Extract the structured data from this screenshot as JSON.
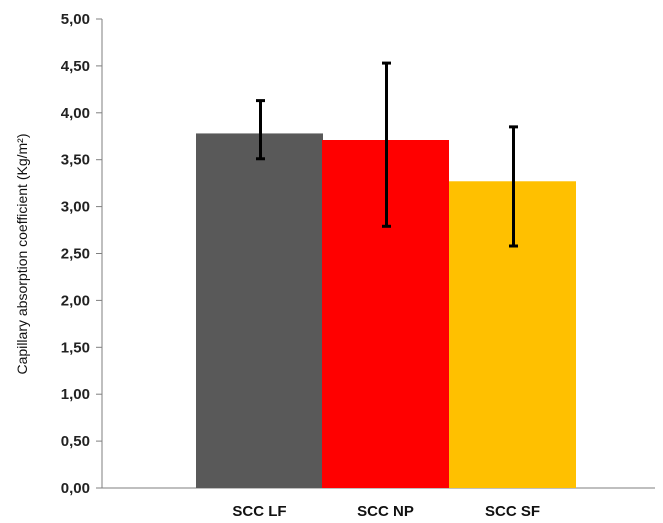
{
  "chart_data": {
    "type": "bar",
    "categories": [
      "SCC LF",
      "SCC NP",
      "SCC SF"
    ],
    "values": [
      3.78,
      3.71,
      3.27
    ],
    "error_low": [
      3.51,
      2.79,
      2.58
    ],
    "error_high": [
      4.13,
      4.53,
      3.85
    ],
    "colors": [
      "#595959",
      "#ff0000",
      "#ffc000"
    ],
    "title": "",
    "xlabel": "",
    "ylabel": "Capillary absorption coefficient (Kg/m²)",
    "ylim": [
      0,
      5
    ],
    "yticks": [
      "0,00",
      "0,50",
      "1,00",
      "1,50",
      "2,00",
      "2,50",
      "3,00",
      "3,50",
      "4,00",
      "4,50",
      "5,00"
    ],
    "grid": false,
    "legend": "none"
  }
}
